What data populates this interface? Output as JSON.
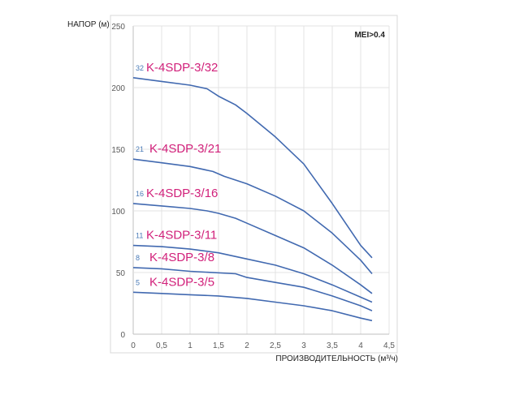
{
  "chart_data": {
    "type": "line",
    "title": "",
    "annotation": "MEI>0.4",
    "xlabel": "ПРОИЗВОДИТЕЛЬНОСТЬ (м³/ч)",
    "ylabel": "НАПОР (м)",
    "xlim": [
      0,
      4.5
    ],
    "ylim": [
      0,
      250
    ],
    "xticks": [
      "0",
      "0,5",
      "1",
      "1,5",
      "2",
      "2,5",
      "3",
      "3,5",
      "4",
      "4,5"
    ],
    "yticks": [
      "0",
      "50",
      "100",
      "150",
      "200",
      "250"
    ],
    "grid": true,
    "line_color": "#4169b0",
    "label_color": "#d1207a",
    "series": [
      {
        "name": "K-4SDP-3/32",
        "stages": "32",
        "x": [
          0,
          0.5,
          1,
          1.3,
          1.5,
          1.8,
          2,
          2.5,
          3,
          3.5,
          4,
          4.2
        ],
        "y": [
          208,
          205,
          202,
          199,
          193,
          186,
          179,
          160,
          138,
          106,
          72,
          62
        ]
      },
      {
        "name": "K-4SDP-3/21",
        "stages": "21",
        "x": [
          0,
          0.5,
          1,
          1.4,
          1.6,
          2,
          2.5,
          3,
          3.5,
          4,
          4.2
        ],
        "y": [
          142,
          139,
          136,
          132,
          128,
          122,
          112,
          100,
          82,
          60,
          49
        ]
      },
      {
        "name": "K-4SDP-3/16",
        "stages": "16",
        "x": [
          0,
          0.5,
          1,
          1.3,
          1.5,
          1.8,
          2,
          2.5,
          3,
          3.5,
          4,
          4.2
        ],
        "y": [
          106,
          104,
          102,
          100,
          98,
          94,
          90,
          80,
          70,
          56,
          40,
          33
        ]
      },
      {
        "name": "K-4SDP-3/11",
        "stages": "11",
        "x": [
          0,
          0.5,
          1,
          1.5,
          2,
          2.5,
          3,
          3.5,
          4,
          4.2
        ],
        "y": [
          72,
          71,
          69,
          66,
          61,
          56,
          49,
          40,
          30,
          26
        ]
      },
      {
        "name": "K-4SDP-3/8",
        "stages": "8",
        "x": [
          0,
          0.5,
          1,
          1.8,
          2,
          2.5,
          3,
          3.5,
          4,
          4.2
        ],
        "y": [
          54,
          53,
          51,
          49,
          46,
          42,
          38,
          31,
          23,
          19
        ]
      },
      {
        "name": "K-4SDP-3/5",
        "stages": "5",
        "x": [
          0,
          0.5,
          1,
          1.5,
          2,
          2.5,
          3,
          3.5,
          4,
          4.2
        ],
        "y": [
          34,
          33,
          32,
          31,
          29,
          26,
          23,
          19,
          13,
          11
        ]
      }
    ]
  }
}
